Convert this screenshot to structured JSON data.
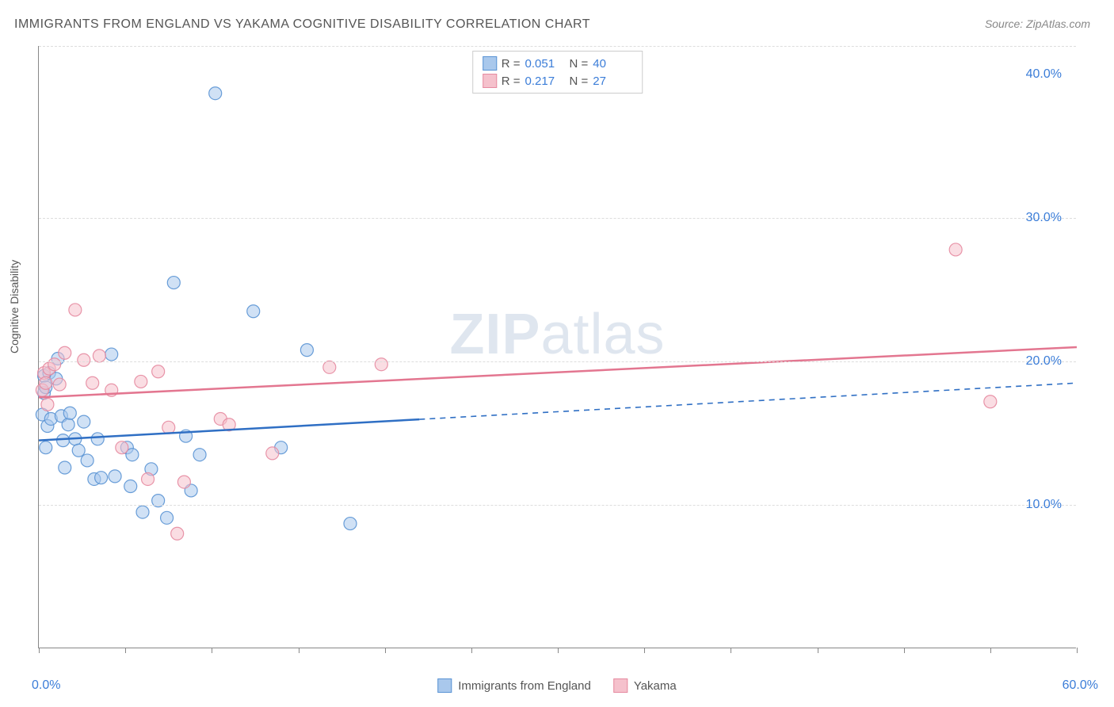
{
  "title": "IMMIGRANTS FROM ENGLAND VS YAKAMA COGNITIVE DISABILITY CORRELATION CHART",
  "source": "Source: ZipAtlas.com",
  "ylabel": "Cognitive Disability",
  "watermark_a": "ZIP",
  "watermark_b": "atlas",
  "chart": {
    "type": "scatter",
    "xlim": [
      0,
      60
    ],
    "ylim": [
      0,
      42
    ],
    "x_ticks": [
      0,
      5,
      10,
      15,
      20,
      25,
      30,
      35,
      40,
      45,
      50,
      55,
      60
    ],
    "y_gridlines": [
      10,
      20,
      30,
      42
    ],
    "y_tick_labels": [
      {
        "v": 10,
        "t": "10.0%"
      },
      {
        "v": 20,
        "t": "20.0%"
      },
      {
        "v": 30,
        "t": "30.0%"
      },
      {
        "v": 40,
        "t": "40.0%"
      }
    ],
    "x_start_label": "0.0%",
    "x_end_label": "60.0%",
    "background_color": "#ffffff",
    "grid_color": "#dddddd",
    "axis_color": "#888888",
    "tick_label_color": "#3b7dd8",
    "marker_radius": 8,
    "marker_opacity": 0.55,
    "marker_stroke_opacity": 0.9
  },
  "series": [
    {
      "name": "Immigrants from England",
      "fill": "#a9c8ec",
      "stroke": "#5a93d4",
      "line_color": "#2f6fc4",
      "R": "0.051",
      "N": "40",
      "trend": {
        "y_at_x0": 14.5,
        "y_at_x60": 18.5,
        "solid_until_x": 22
      },
      "points": [
        [
          0.2,
          16.3
        ],
        [
          0.3,
          19.0
        ],
        [
          0.3,
          17.8
        ],
        [
          0.4,
          18.2
        ],
        [
          0.4,
          14.0
        ],
        [
          0.5,
          15.5
        ],
        [
          0.6,
          19.2
        ],
        [
          0.7,
          16.0
        ],
        [
          1.0,
          18.8
        ],
        [
          1.1,
          20.2
        ],
        [
          1.3,
          16.2
        ],
        [
          1.4,
          14.5
        ],
        [
          1.5,
          12.6
        ],
        [
          1.7,
          15.6
        ],
        [
          1.8,
          16.4
        ],
        [
          2.1,
          14.6
        ],
        [
          2.3,
          13.8
        ],
        [
          2.6,
          15.8
        ],
        [
          2.8,
          13.1
        ],
        [
          3.2,
          11.8
        ],
        [
          3.4,
          14.6
        ],
        [
          3.6,
          11.9
        ],
        [
          4.2,
          20.5
        ],
        [
          4.4,
          12.0
        ],
        [
          5.1,
          14.0
        ],
        [
          5.4,
          13.5
        ],
        [
          5.3,
          11.3
        ],
        [
          6.0,
          9.5
        ],
        [
          6.5,
          12.5
        ],
        [
          6.9,
          10.3
        ],
        [
          7.4,
          9.1
        ],
        [
          7.8,
          25.5
        ],
        [
          8.5,
          14.8
        ],
        [
          8.8,
          11.0
        ],
        [
          9.3,
          13.5
        ],
        [
          10.2,
          38.7
        ],
        [
          12.4,
          23.5
        ],
        [
          14.0,
          14.0
        ],
        [
          15.5,
          20.8
        ],
        [
          18.0,
          8.7
        ]
      ]
    },
    {
      "name": "Yakama",
      "fill": "#f5c1cc",
      "stroke": "#e68aa0",
      "line_color": "#e37690",
      "R": "0.217",
      "N": "27",
      "trend": {
        "y_at_x0": 17.5,
        "y_at_x60": 21.0,
        "solid_until_x": 60
      },
      "points": [
        [
          0.2,
          18.0
        ],
        [
          0.3,
          19.2
        ],
        [
          0.4,
          18.5
        ],
        [
          0.5,
          17.0
        ],
        [
          0.6,
          19.5
        ],
        [
          0.9,
          19.8
        ],
        [
          1.2,
          18.4
        ],
        [
          1.5,
          20.6
        ],
        [
          2.1,
          23.6
        ],
        [
          2.6,
          20.1
        ],
        [
          3.1,
          18.5
        ],
        [
          3.5,
          20.4
        ],
        [
          4.2,
          18.0
        ],
        [
          4.8,
          14.0
        ],
        [
          5.9,
          18.6
        ],
        [
          6.3,
          11.8
        ],
        [
          6.9,
          19.3
        ],
        [
          7.5,
          15.4
        ],
        [
          8.0,
          8.0
        ],
        [
          8.4,
          11.6
        ],
        [
          10.5,
          16.0
        ],
        [
          11.0,
          15.6
        ],
        [
          13.5,
          13.6
        ],
        [
          16.8,
          19.6
        ],
        [
          19.8,
          19.8
        ],
        [
          53.0,
          27.8
        ],
        [
          55.0,
          17.2
        ]
      ]
    }
  ],
  "bottom_legend": [
    {
      "label": "Immigrants from England",
      "fill": "#a9c8ec",
      "stroke": "#5a93d4"
    },
    {
      "label": "Yakama",
      "fill": "#f5c1cc",
      "stroke": "#e68aa0"
    }
  ],
  "top_legend_labels": {
    "R": "R =",
    "N": "N ="
  }
}
